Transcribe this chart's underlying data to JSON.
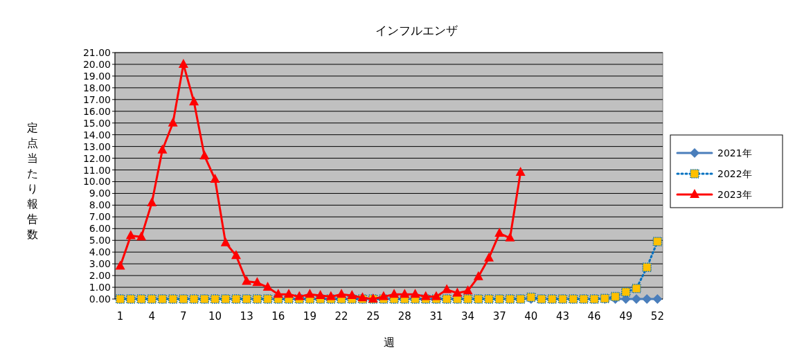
{
  "chart_data": {
    "type": "line",
    "title": "インフルエンザ",
    "xlabel": "週",
    "ylabel": "定点当たり報告数",
    "categories": [
      "1",
      null,
      null,
      "4",
      null,
      null,
      "7",
      null,
      null,
      "10",
      null,
      null,
      "13",
      null,
      null,
      "16",
      null,
      null,
      "19",
      null,
      null,
      "22",
      null,
      null,
      "25",
      null,
      null,
      "28",
      null,
      null,
      "31",
      null,
      null,
      "34",
      null,
      null,
      "37",
      null,
      null,
      "40",
      null,
      null,
      "43",
      null,
      null,
      "46",
      null,
      null,
      "49",
      null,
      null,
      "52"
    ],
    "ylim": [
      0,
      21
    ],
    "yticks": [
      {
        "value": 0,
        "label": "0.00"
      },
      {
        "value": 1,
        "label": "1.00"
      },
      {
        "value": 2,
        "label": "2.00"
      },
      {
        "value": 3,
        "label": "3.00"
      },
      {
        "value": 4,
        "label": "4.00"
      },
      {
        "value": 5,
        "label": "5.00"
      },
      {
        "value": 6,
        "label": "6.00"
      },
      {
        "value": 7,
        "label": "7.00"
      },
      {
        "value": 8,
        "label": "8.00"
      },
      {
        "value": 9,
        "label": "9.00"
      },
      {
        "value": 10,
        "label": "10.00"
      },
      {
        "value": 11,
        "label": "11.00"
      },
      {
        "value": 12,
        "label": "12.00"
      },
      {
        "value": 13,
        "label": "13.00"
      },
      {
        "value": 14,
        "label": "14.00"
      },
      {
        "value": 15,
        "label": "15.00"
      },
      {
        "value": 16,
        "label": "16.00"
      },
      {
        "value": 17,
        "label": "17.00"
      },
      {
        "value": 18,
        "label": "18.00"
      },
      {
        "value": 19,
        "label": "19.00"
      },
      {
        "value": 20,
        "label": "20.00"
      },
      {
        "value": 21,
        "label": "21.00"
      }
    ],
    "grid": "y",
    "legend": "right",
    "series": [
      {
        "name": "2021年",
        "color": "#4a7ebb",
        "marker": "diamond",
        "line_style": "solid",
        "values": [
          0,
          0,
          0,
          0,
          0,
          0,
          0,
          0,
          0,
          0,
          0,
          0,
          0,
          0,
          0,
          0,
          0,
          0,
          0,
          0,
          0,
          0,
          0,
          0,
          0,
          0,
          0,
          0,
          0,
          0,
          0,
          0,
          0,
          0,
          0,
          0,
          0,
          0,
          0,
          0,
          0,
          0,
          0,
          0,
          0,
          0,
          0,
          0,
          0,
          0,
          0,
          0
        ]
      },
      {
        "name": "2022年",
        "color": "#0070c0",
        "marker": "square",
        "line_style": "dotted",
        "values": [
          0,
          0,
          0,
          0,
          0,
          0,
          0,
          0,
          0,
          0,
          0,
          0,
          0,
          0,
          0,
          0,
          0,
          0,
          0,
          0,
          0,
          0,
          0,
          0,
          0,
          0,
          0,
          0,
          0,
          0,
          0,
          0,
          0,
          0,
          0,
          0,
          0,
          0,
          0,
          0.15,
          0,
          0,
          0,
          0,
          0,
          0,
          0.05,
          0.2,
          0.6,
          0.9,
          2.7,
          4.9
        ]
      },
      {
        "name": "2023年",
        "color": "#ff0000",
        "marker": "triangle",
        "line_style": "solid",
        "values": [
          2.8,
          5.4,
          5.3,
          8.2,
          12.7,
          15.0,
          20.0,
          16.8,
          12.2,
          10.2,
          4.8,
          3.7,
          1.5,
          1.4,
          1.0,
          0.4,
          0.4,
          0.2,
          0.4,
          0.3,
          0.2,
          0.4,
          0.3,
          0.1,
          0.0,
          0.2,
          0.4,
          0.4,
          0.4,
          0.2,
          0.2,
          0.8,
          0.5,
          0.7,
          1.9,
          3.5,
          5.6,
          5.2,
          10.8,
          null,
          null,
          null,
          null,
          null,
          null,
          null,
          null,
          null,
          null,
          null,
          null,
          null
        ]
      }
    ]
  }
}
